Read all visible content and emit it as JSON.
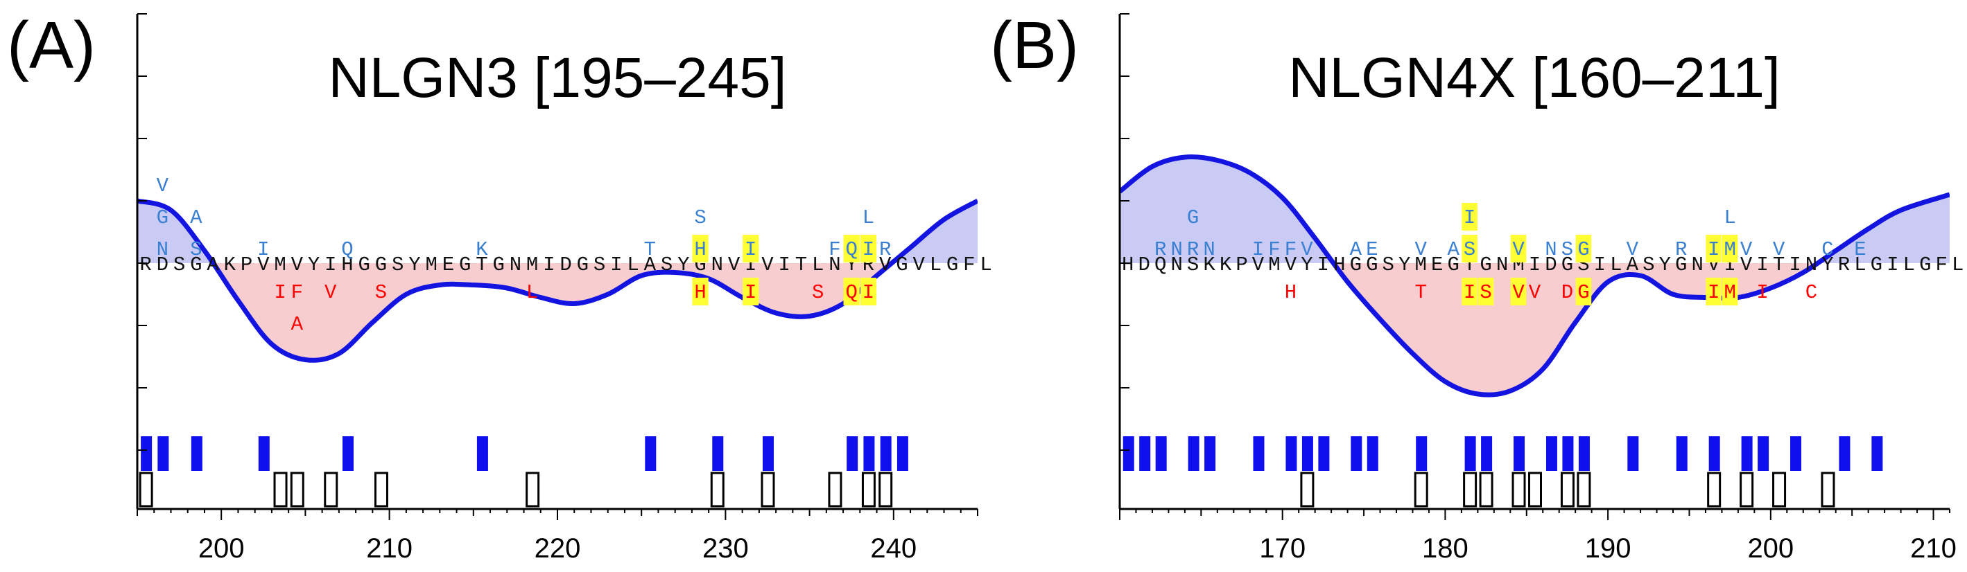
{
  "colors": {
    "curve": "#1414e0",
    "pos_fill": "#c9cbf5",
    "neg_fill": "#f8cdd0",
    "pos_letter": "#3a7fd0",
    "neg_letter": "#ff0000",
    "highlight": "#ffff33",
    "marker": "#1010ee"
  },
  "panels": [
    {
      "label": "(A)"
    },
    {
      "label": "(B)"
    }
  ],
  "chart_data": [
    {
      "type": "line",
      "title": "NLGN3 [195–245]",
      "xlim": [
        195,
        245
      ],
      "xticks": [
        200,
        210,
        220,
        230,
        240
      ],
      "sequence": "RDSGAKPVMVYIHGGSYMEGTGNMIDGSILASYGNVIVITLNYRVGVLGFL",
      "curve": {
        "x": [
          195,
          197,
          199,
          201,
          203,
          205,
          207,
          209,
          211,
          213,
          215,
          217,
          219,
          221,
          223,
          225,
          227,
          229,
          231,
          233,
          235,
          237,
          239,
          241,
          243,
          245
        ],
        "y": [
          1.0,
          0.85,
          0.2,
          -0.6,
          -1.3,
          -1.55,
          -1.45,
          -0.95,
          -0.5,
          -0.35,
          -0.35,
          -0.4,
          -0.55,
          -0.65,
          -0.5,
          -0.2,
          -0.15,
          -0.25,
          -0.55,
          -0.8,
          -0.85,
          -0.65,
          -0.2,
          0.25,
          0.7,
          1.0
        ]
      },
      "pos_letters": [
        {
          "x": 196,
          "row": 3,
          "text": "V"
        },
        {
          "x": 196,
          "row": 2,
          "text": "G"
        },
        {
          "x": 196,
          "row": 1,
          "text": "N"
        },
        {
          "x": 198,
          "row": 2,
          "text": "A"
        },
        {
          "x": 198,
          "row": 1,
          "text": "S"
        },
        {
          "x": 202,
          "row": 1,
          "text": "I"
        },
        {
          "x": 207,
          "row": 1,
          "text": "Q"
        },
        {
          "x": 215,
          "row": 1,
          "text": "K"
        },
        {
          "x": 225,
          "row": 1,
          "text": "T"
        },
        {
          "x": 228,
          "row": 2,
          "text": "S"
        },
        {
          "x": 228,
          "row": 1,
          "text": "H",
          "hl": true
        },
        {
          "x": 231,
          "row": 1,
          "text": "I",
          "hl": true
        },
        {
          "x": 236,
          "row": 1,
          "text": "F"
        },
        {
          "x": 237,
          "row": 1,
          "text": "Q",
          "hl": true
        },
        {
          "x": 238,
          "row": 1,
          "text": "I",
          "hl": true
        },
        {
          "x": 238,
          "row": 2,
          "text": "L"
        },
        {
          "x": 239,
          "row": 1,
          "text": "R"
        }
      ],
      "neg_letters": [
        {
          "x": 203,
          "row": 1,
          "text": "I"
        },
        {
          "x": 204,
          "row": 1,
          "text": "F"
        },
        {
          "x": 204,
          "row": 2,
          "text": "A"
        },
        {
          "x": 206,
          "row": 1,
          "text": "V"
        },
        {
          "x": 209,
          "row": 1,
          "text": "S"
        },
        {
          "x": 218,
          "row": 1,
          "text": "L"
        },
        {
          "x": 228,
          "row": 1,
          "text": "H",
          "hl": true
        },
        {
          "x": 231,
          "row": 1,
          "text": "I",
          "hl": true
        },
        {
          "x": 235,
          "row": 1,
          "text": "S"
        },
        {
          "x": 237,
          "row": 1,
          "text": "Q",
          "hl": true
        },
        {
          "x": 238,
          "row": 1,
          "text": "I",
          "hl": true
        }
      ],
      "blue_markers": [
        195.5,
        196.5,
        198.5,
        202.5,
        207.5,
        215.5,
        225.5,
        229.5,
        232.5,
        237.5,
        238.5,
        239.5,
        240.5
      ],
      "open_markers": [
        195.5,
        203.5,
        204.5,
        206.5,
        209.5,
        218.5,
        229.5,
        232.5,
        236.5,
        238.5,
        239.5
      ]
    },
    {
      "type": "line",
      "title": "NLGN4X [160–211]",
      "xlim": [
        160,
        211
      ],
      "xticks": [
        170,
        180,
        190,
        200,
        210
      ],
      "sequence": "HDQNSKKPVMVYIHGGSYMEGTGNMIDGSILASYGNVIVITINYRLGILGFL",
      "curve": {
        "x": [
          160,
          162,
          164,
          166,
          168,
          170,
          172,
          174,
          176,
          178,
          180,
          182,
          184,
          186,
          188,
          190,
          192,
          194,
          196,
          198,
          200,
          202,
          204,
          206,
          208,
          211
        ],
        "y": [
          1.15,
          1.55,
          1.7,
          1.65,
          1.45,
          1.05,
          0.4,
          -0.3,
          -0.9,
          -1.45,
          -1.9,
          -2.1,
          -2.05,
          -1.7,
          -0.95,
          -0.3,
          -0.2,
          -0.5,
          -0.55,
          -0.55,
          -0.4,
          -0.15,
          0.2,
          0.55,
          0.85,
          1.1
        ]
      },
      "pos_letters": [
        {
          "x": 162,
          "row": 1,
          "text": "R"
        },
        {
          "x": 163,
          "row": 1,
          "text": "N"
        },
        {
          "x": 164,
          "row": 1,
          "text": "R"
        },
        {
          "x": 164,
          "row": 2,
          "text": "G"
        },
        {
          "x": 165,
          "row": 1,
          "text": "N"
        },
        {
          "x": 168,
          "row": 1,
          "text": "I"
        },
        {
          "x": 169,
          "row": 1,
          "text": "F"
        },
        {
          "x": 170,
          "row": 1,
          "text": "F"
        },
        {
          "x": 171,
          "row": 1,
          "text": "V"
        },
        {
          "x": 174,
          "row": 1,
          "text": "A"
        },
        {
          "x": 175,
          "row": 1,
          "text": "E"
        },
        {
          "x": 178,
          "row": 1,
          "text": "V"
        },
        {
          "x": 180,
          "row": 1,
          "text": "A"
        },
        {
          "x": 181,
          "row": 1,
          "text": "S",
          "hl": true
        },
        {
          "x": 181,
          "row": 2,
          "text": "I",
          "hl": true
        },
        {
          "x": 184,
          "row": 1,
          "text": "V",
          "hl": true
        },
        {
          "x": 186,
          "row": 1,
          "text": "N"
        },
        {
          "x": 187,
          "row": 1,
          "text": "S"
        },
        {
          "x": 188,
          "row": 1,
          "text": "G",
          "hl": true
        },
        {
          "x": 191,
          "row": 1,
          "text": "V"
        },
        {
          "x": 194,
          "row": 1,
          "text": "R"
        },
        {
          "x": 196,
          "row": 1,
          "text": "I",
          "hl": true
        },
        {
          "x": 197,
          "row": 1,
          "text": "M",
          "hl": true
        },
        {
          "x": 197,
          "row": 2,
          "text": "L"
        },
        {
          "x": 198,
          "row": 1,
          "text": "V"
        },
        {
          "x": 200,
          "row": 1,
          "text": "V"
        },
        {
          "x": 203,
          "row": 1,
          "text": "C"
        },
        {
          "x": 205,
          "row": 1,
          "text": "E"
        }
      ],
      "neg_letters": [
        {
          "x": 170,
          "row": 1,
          "text": "H"
        },
        {
          "x": 178,
          "row": 1,
          "text": "T"
        },
        {
          "x": 181,
          "row": 1,
          "text": "I",
          "hl": true
        },
        {
          "x": 182,
          "row": 1,
          "text": "S",
          "hl": true
        },
        {
          "x": 184,
          "row": 1,
          "text": "V",
          "hl": true
        },
        {
          "x": 185,
          "row": 1,
          "text": "V"
        },
        {
          "x": 187,
          "row": 1,
          "text": "D"
        },
        {
          "x": 188,
          "row": 1,
          "text": "G",
          "hl": true
        },
        {
          "x": 196,
          "row": 1,
          "text": "I",
          "hl": true
        },
        {
          "x": 197,
          "row": 1,
          "text": "M",
          "hl": true
        },
        {
          "x": 199,
          "row": 1,
          "text": "I"
        },
        {
          "x": 202,
          "row": 1,
          "text": "C"
        }
      ],
      "blue_markers": [
        160.5,
        161.5,
        162.5,
        164.5,
        165.5,
        168.5,
        170.5,
        171.5,
        172.5,
        174.5,
        175.5,
        178.5,
        181.5,
        182.5,
        184.5,
        186.5,
        187.5,
        188.5,
        191.5,
        194.5,
        196.5,
        198.5,
        199.5,
        201.5,
        204.5,
        206.5
      ],
      "open_markers": [
        171.5,
        178.5,
        181.5,
        182.5,
        184.5,
        185.5,
        187.5,
        188.5,
        196.5,
        198.5,
        200.5,
        203.5
      ]
    }
  ]
}
